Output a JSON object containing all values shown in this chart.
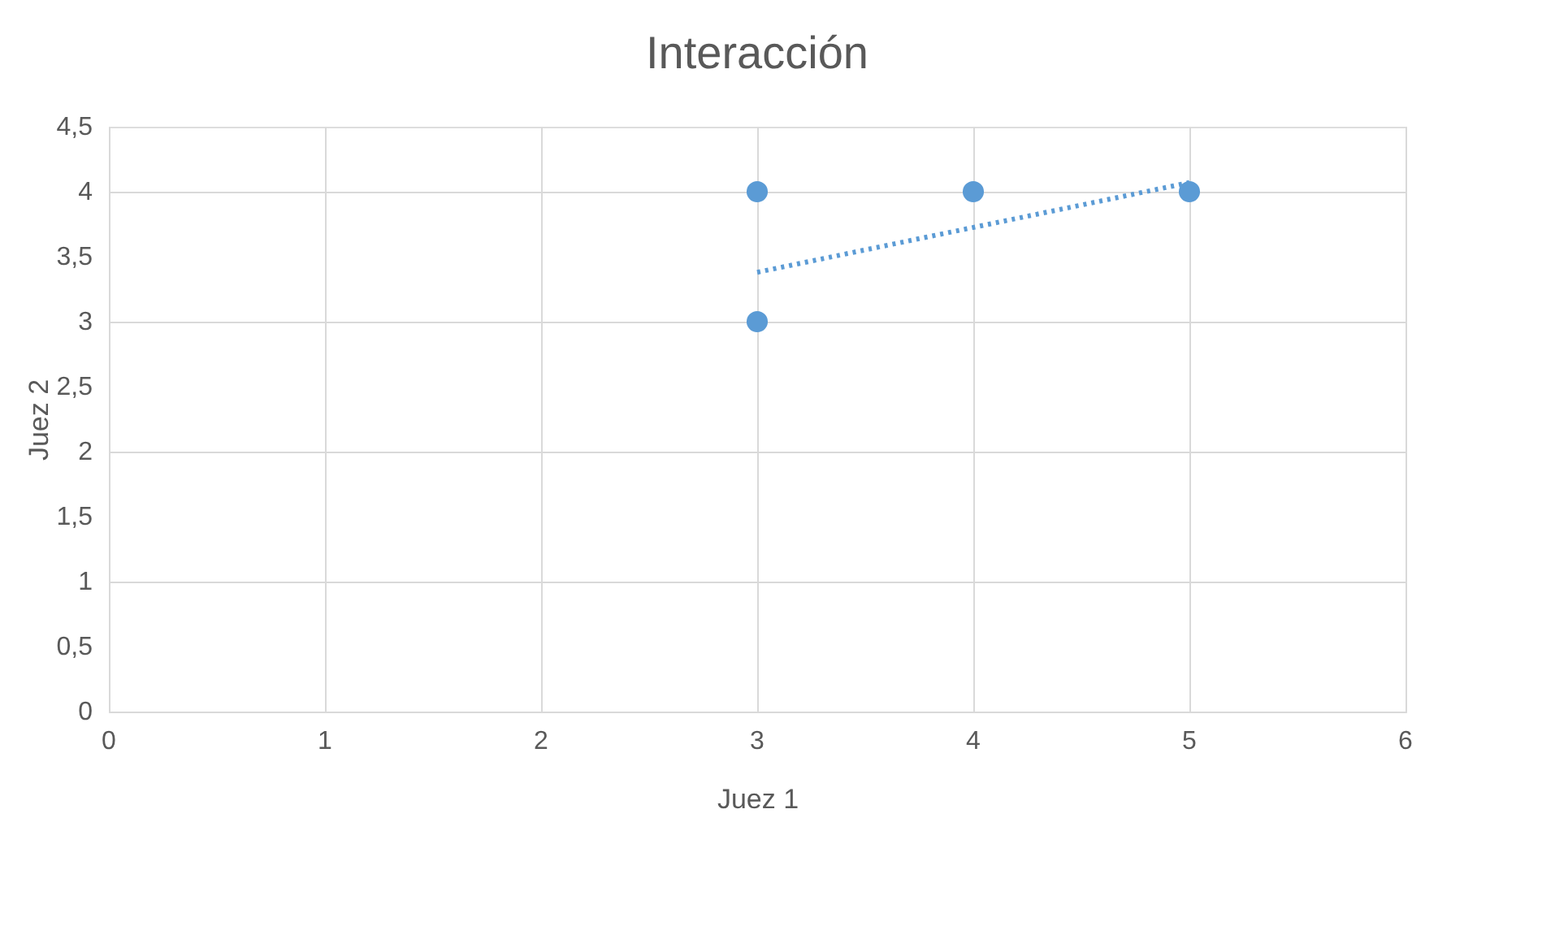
{
  "chart_data": {
    "type": "scatter",
    "title": "Interacción",
    "xlabel": "Juez 1",
    "ylabel": "Juez 2",
    "xlim": [
      0,
      6
    ],
    "xticks": [
      0,
      1,
      2,
      3,
      4,
      5,
      6
    ],
    "ylim": [
      0,
      4.5
    ],
    "yticks": [
      0,
      {
        "value": 0.5,
        "label": "0,5"
      },
      1,
      {
        "value": 1.5,
        "label": "1,5"
      },
      2,
      {
        "value": 2.5,
        "label": "2,5"
      },
      3,
      {
        "value": 3.5,
        "label": "3,5"
      },
      4,
      {
        "value": 4.5,
        "label": "4,5"
      }
    ],
    "grid": true,
    "series": [
      {
        "color": "#5b9bd5",
        "marker": "circle",
        "x": [
          3,
          4,
          5,
          3
        ],
        "values": [
          4,
          4,
          4,
          3
        ]
      },
      {
        "type": "line",
        "color": "#5b9bd5",
        "line_style": "dotted",
        "x": [
          3,
          5
        ],
        "values": [
          3.38,
          4.07
        ]
      }
    ]
  }
}
